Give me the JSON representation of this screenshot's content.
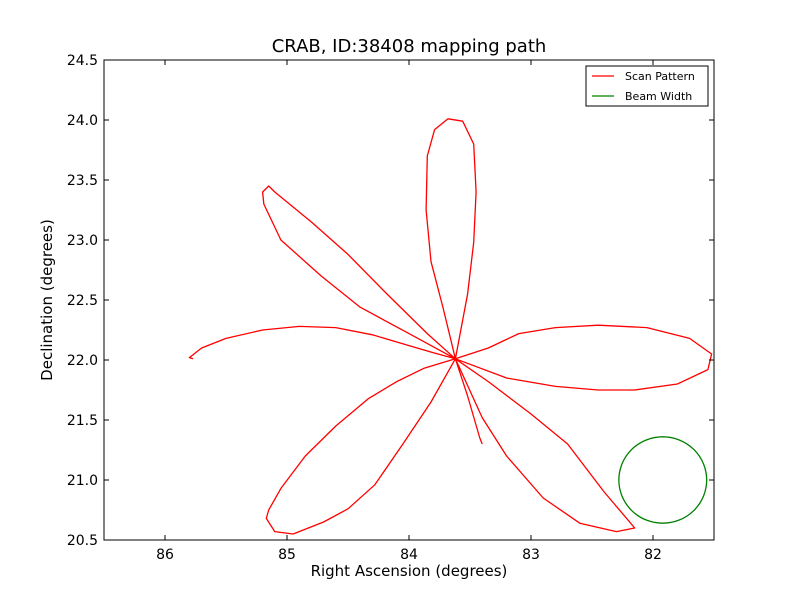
{
  "chart_data": {
    "type": "line",
    "title": "CRAB, ID:38408 mapping path",
    "xlabel": "Right Ascension (degrees)",
    "ylabel": "Declination (degrees)",
    "xlim": [
      86.5,
      81.5
    ],
    "ylim": [
      20.5,
      24.5
    ],
    "x_inverted": true,
    "grid": false,
    "legend_position": "top-right",
    "xticks": [
      86,
      85,
      84,
      83,
      82
    ],
    "xtick_labels": [
      "86",
      "85",
      "84",
      "83",
      "82"
    ],
    "yticks": [
      20.5,
      21.0,
      21.5,
      22.0,
      22.5,
      23.0,
      23.5,
      24.0,
      24.5
    ],
    "ytick_labels": [
      "20.5",
      "21.0",
      "21.5",
      "22.0",
      "22.5",
      "23.0",
      "23.5",
      "24.0",
      "24.5"
    ],
    "series": [
      {
        "name": "Scan Pattern",
        "color": "#ff0000",
        "points": [
          [
            85.77,
            22.01
          ],
          [
            85.8,
            22.02
          ],
          [
            85.7,
            22.1
          ],
          [
            85.5,
            22.18
          ],
          [
            85.2,
            22.25
          ],
          [
            84.9,
            22.28
          ],
          [
            84.6,
            22.27
          ],
          [
            84.3,
            22.21
          ],
          [
            84.0,
            22.12
          ],
          [
            83.8,
            22.06
          ],
          [
            83.62,
            22.01
          ],
          [
            83.88,
            21.93
          ],
          [
            84.1,
            21.82
          ],
          [
            84.33,
            21.68
          ],
          [
            84.6,
            21.45
          ],
          [
            84.85,
            21.2
          ],
          [
            85.05,
            20.93
          ],
          [
            85.15,
            20.75
          ],
          [
            85.17,
            20.68
          ],
          [
            85.1,
            20.57
          ],
          [
            84.95,
            20.55
          ],
          [
            84.7,
            20.65
          ],
          [
            84.5,
            20.76
          ],
          [
            84.28,
            20.96
          ],
          [
            84.05,
            21.3
          ],
          [
            83.82,
            21.65
          ],
          [
            83.62,
            22.01
          ],
          [
            83.72,
            22.43
          ],
          [
            83.82,
            22.82
          ],
          [
            83.86,
            23.25
          ],
          [
            83.85,
            23.7
          ],
          [
            83.79,
            23.92
          ],
          [
            83.68,
            24.01
          ],
          [
            83.56,
            23.99
          ],
          [
            83.47,
            23.8
          ],
          [
            83.45,
            23.4
          ],
          [
            83.47,
            22.98
          ],
          [
            83.52,
            22.55
          ],
          [
            83.62,
            22.01
          ],
          [
            83.85,
            22.22
          ],
          [
            84.18,
            22.55
          ],
          [
            84.5,
            22.88
          ],
          [
            84.8,
            23.15
          ],
          [
            85.1,
            23.4
          ],
          [
            85.15,
            23.45
          ],
          [
            85.2,
            23.4
          ],
          [
            85.19,
            23.3
          ],
          [
            85.05,
            23.0
          ],
          [
            84.72,
            22.7
          ],
          [
            84.4,
            22.44
          ],
          [
            84.0,
            22.22
          ],
          [
            83.62,
            22.01
          ],
          [
            83.35,
            22.1
          ],
          [
            83.1,
            22.22
          ],
          [
            82.8,
            22.27
          ],
          [
            82.45,
            22.29
          ],
          [
            82.05,
            22.27
          ],
          [
            81.7,
            22.18
          ],
          [
            81.52,
            22.05
          ],
          [
            81.55,
            21.92
          ],
          [
            81.8,
            21.8
          ],
          [
            82.15,
            21.75
          ],
          [
            82.45,
            21.75
          ],
          [
            82.8,
            21.78
          ],
          [
            83.2,
            21.85
          ],
          [
            83.62,
            22.01
          ],
          [
            83.35,
            21.82
          ],
          [
            83.0,
            21.55
          ],
          [
            82.7,
            21.3
          ],
          [
            82.4,
            20.9
          ],
          [
            82.25,
            20.72
          ],
          [
            82.15,
            20.6
          ],
          [
            82.3,
            20.57
          ],
          [
            82.6,
            20.64
          ],
          [
            82.9,
            20.85
          ],
          [
            83.2,
            21.2
          ],
          [
            83.4,
            21.52
          ],
          [
            83.62,
            22.01
          ],
          [
            83.52,
            21.7
          ],
          [
            83.42,
            21.35
          ],
          [
            83.4,
            21.3
          ]
        ]
      },
      {
        "name": "Beam Width",
        "color": "#008000",
        "center": [
          81.92,
          21.0
        ],
        "radius_deg": 0.36
      }
    ]
  }
}
